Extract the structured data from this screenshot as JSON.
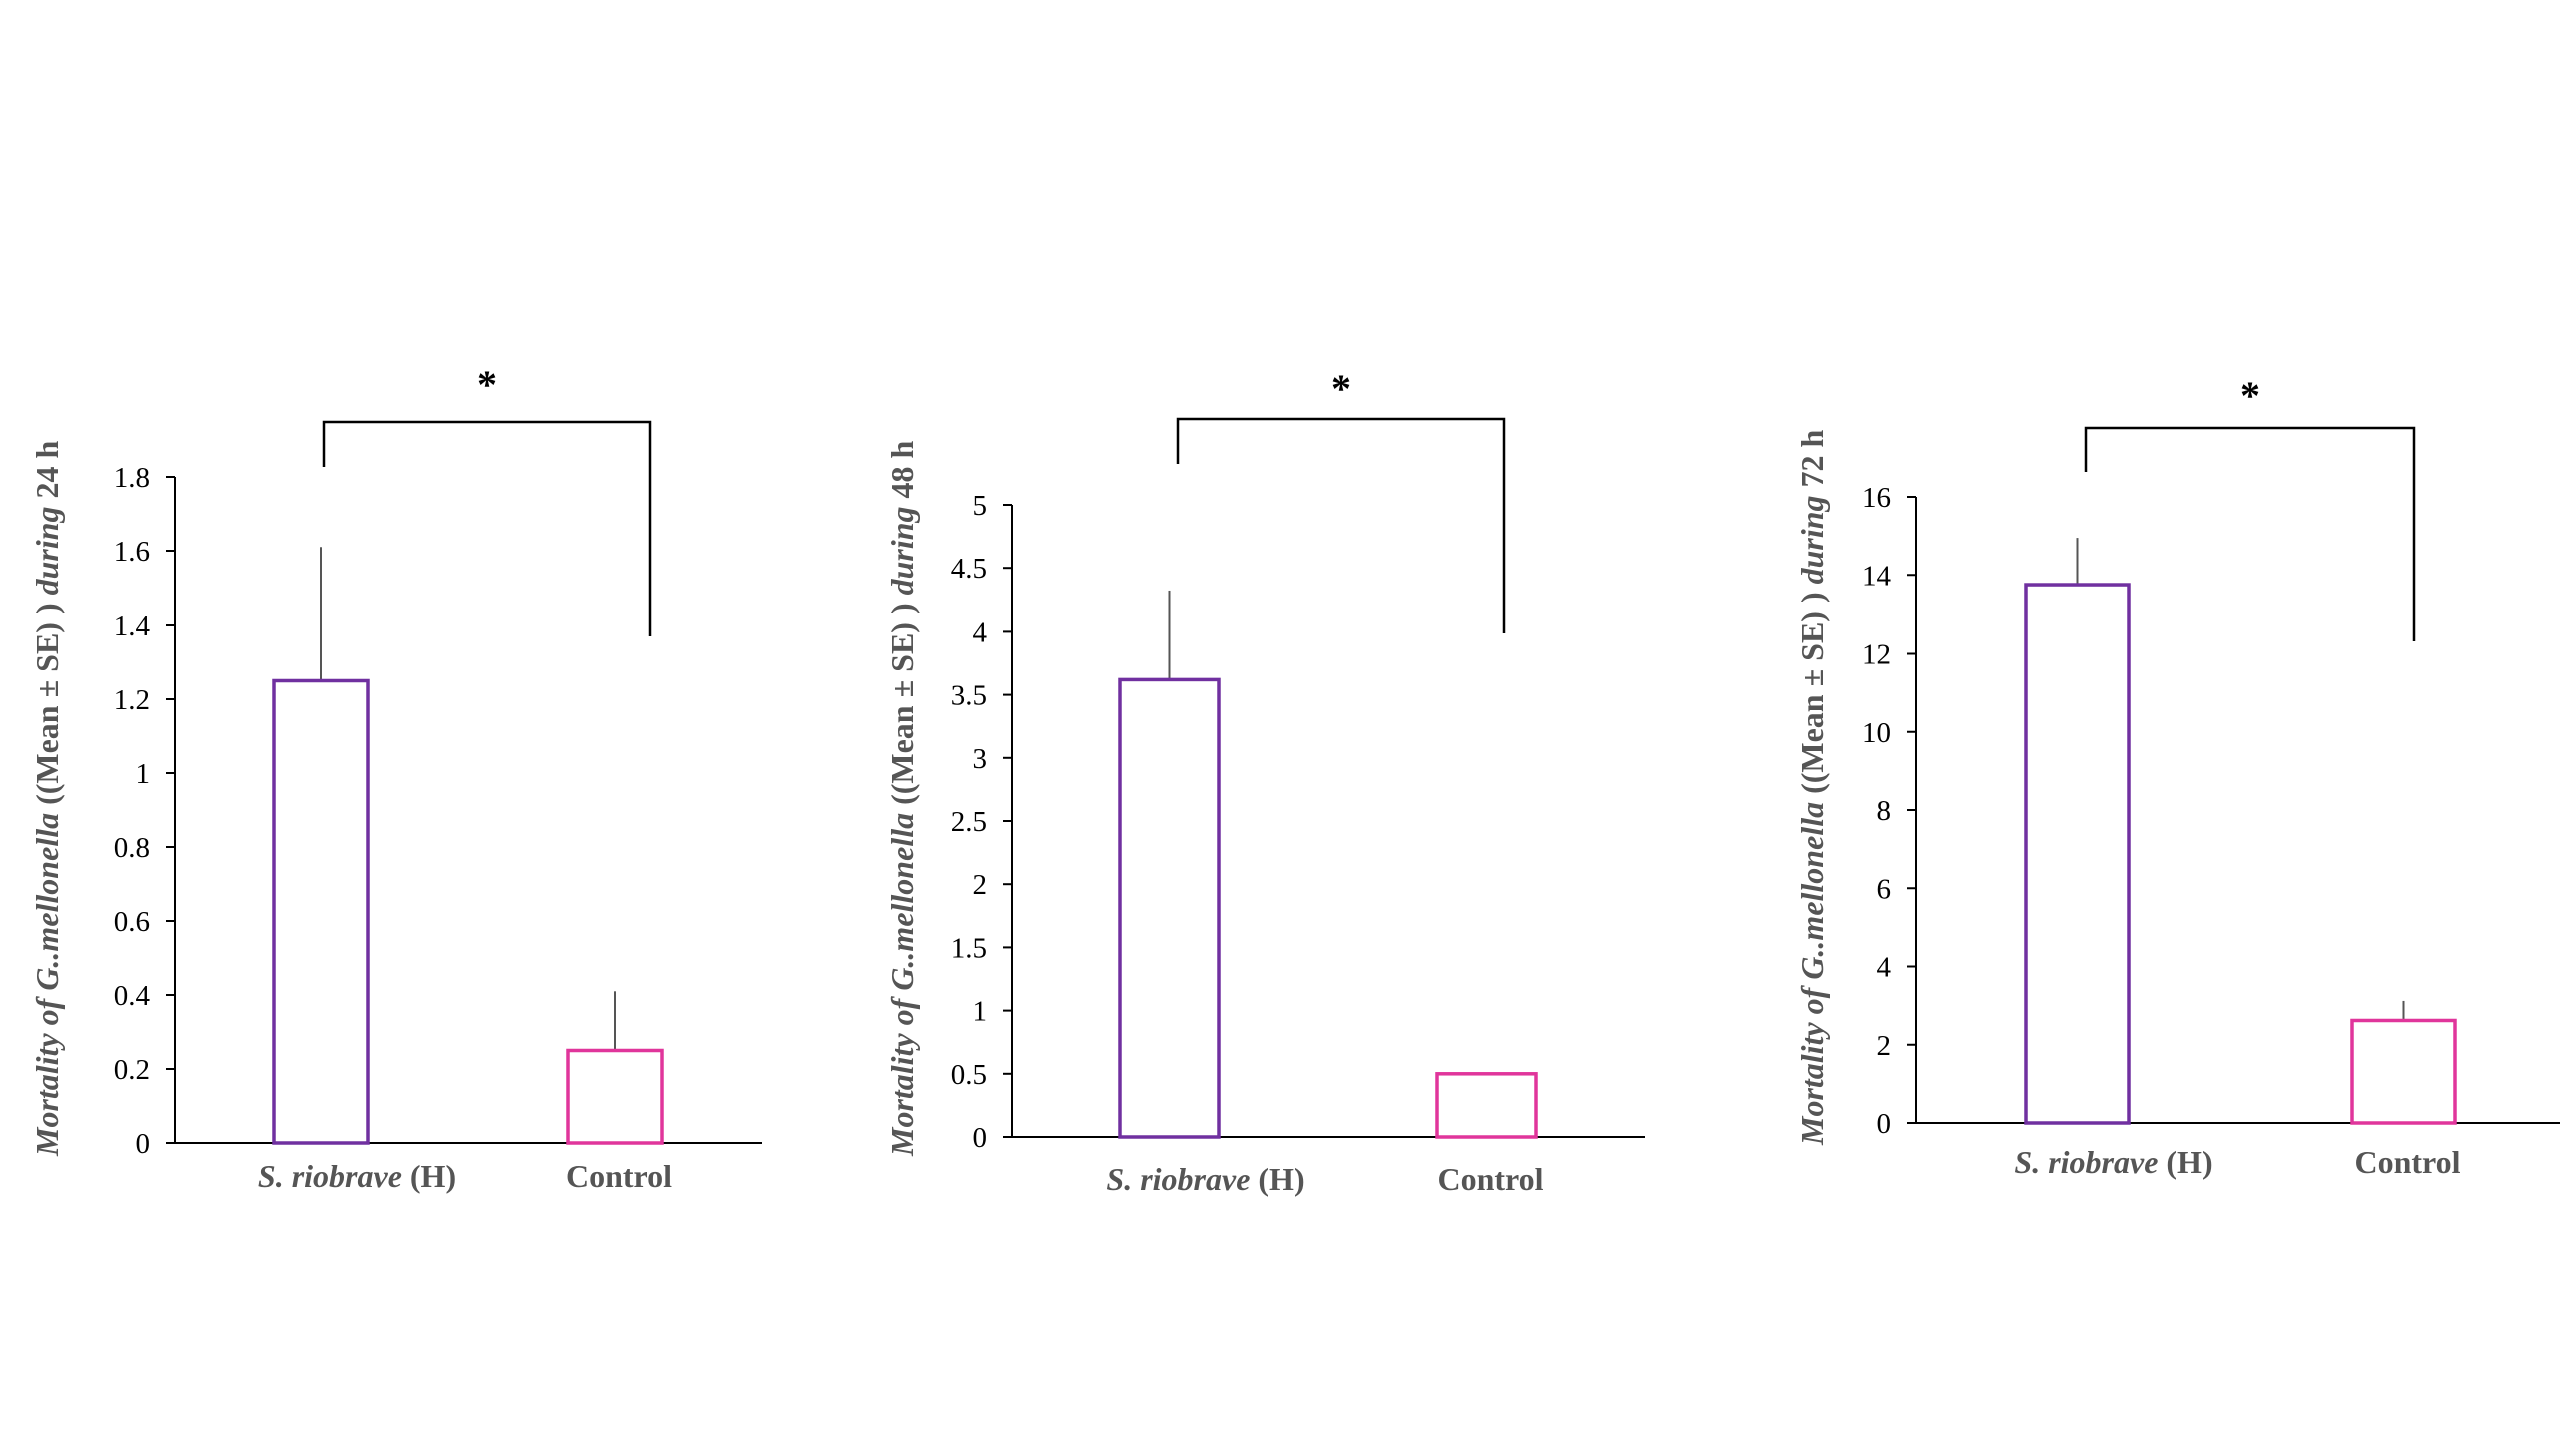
{
  "colors": {
    "axis": "#000000",
    "label": "#555555",
    "error_bar": "#555555",
    "series_1": "#7030A0",
    "series_2": "#E0359B"
  },
  "chart_data": [
    {
      "type": "bar",
      "ylabel_parts": [
        {
          "text": "Mortality of G..mellonella",
          "italic": true
        },
        {
          "text": " ((Mean ± SE) )",
          "italic": false
        },
        {
          "text": " during",
          "italic": true
        },
        {
          "text": " 24 h",
          "italic": false
        }
      ],
      "categories": [
        [
          {
            "text": "S. riobrave",
            "italic": true
          },
          {
            "text": " (H)",
            "italic": false
          }
        ],
        [
          {
            "text": "Control",
            "italic": false
          }
        ]
      ],
      "values": [
        1.25,
        0.25
      ],
      "errors": [
        0.36,
        0.16
      ],
      "bar_colors": [
        "#7030A0",
        "#E0359B"
      ],
      "ylim": [
        0,
        1.8
      ],
      "yticks": [
        "0",
        "0.2",
        "0.4",
        "0.6",
        "0.8",
        "1",
        "1.2",
        "1.4",
        "1.6",
        "1.8"
      ],
      "significance": "*",
      "grid": false,
      "legend": "none"
    },
    {
      "type": "bar",
      "ylabel_parts": [
        {
          "text": "Mortality of G..mellonella",
          "italic": true
        },
        {
          "text": " ((Mean ± SE) )",
          "italic": false
        },
        {
          "text": " during",
          "italic": true
        },
        {
          "text": " 48 h",
          "italic": false
        }
      ],
      "categories": [
        [
          {
            "text": "S. riobrave",
            "italic": true
          },
          {
            "text": " (H)",
            "italic": false
          }
        ],
        [
          {
            "text": "Control",
            "italic": false
          }
        ]
      ],
      "values": [
        3.62,
        0.5
      ],
      "errors": [
        0.7,
        0.0
      ],
      "bar_colors": [
        "#7030A0",
        "#E0359B"
      ],
      "ylim": [
        0,
        5
      ],
      "yticks": [
        "0",
        "0.5",
        "1",
        "1.5",
        "2",
        "2.5",
        "3",
        "3.5",
        "4",
        "4.5",
        "5"
      ],
      "significance": "*",
      "grid": false,
      "legend": "none"
    },
    {
      "type": "bar",
      "ylabel_parts": [
        {
          "text": "Mortality of",
          "italic": true
        },
        {
          "text": " G..mellonella",
          "italic": true
        },
        {
          "text": " ((Mean ± SE) )",
          "italic": false
        },
        {
          "text": " during",
          "italic": true
        },
        {
          "text": " 72 h",
          "italic": false
        }
      ],
      "categories": [
        [
          {
            "text": "S. riobrave",
            "italic": true
          },
          {
            "text": " (H)",
            "italic": false
          }
        ],
        [
          {
            "text": "Control",
            "italic": false
          }
        ]
      ],
      "values": [
        13.75,
        2.62
      ],
      "errors": [
        1.2,
        0.5
      ],
      "bar_colors": [
        "#7030A0",
        "#E0359B"
      ],
      "ylim": [
        0,
        16
      ],
      "yticks": [
        "0",
        "2",
        "4",
        "6",
        "8",
        "10",
        "12",
        "14",
        "16"
      ],
      "significance": "*",
      "grid": false,
      "legend": "none"
    }
  ]
}
